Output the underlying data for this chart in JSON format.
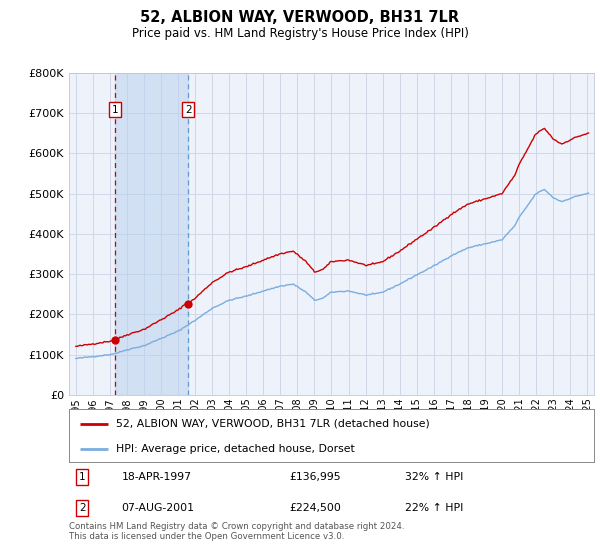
{
  "title": "52, ALBION WAY, VERWOOD, BH31 7LR",
  "subtitle": "Price paid vs. HM Land Registry's House Price Index (HPI)",
  "legend_line1": "52, ALBION WAY, VERWOOD, BH31 7LR (detached house)",
  "legend_line2": "HPI: Average price, detached house, Dorset",
  "sale1_date": "18-APR-1997",
  "sale1_price": "£136,995",
  "sale1_hpi": "32% ↑ HPI",
  "sale1_year": 1997.29,
  "sale1_value": 136995,
  "sale2_date": "07-AUG-2001",
  "sale2_price": "£224,500",
  "sale2_hpi": "22% ↑ HPI",
  "sale2_year": 2001.6,
  "sale2_value": 224500,
  "red_color": "#cc0000",
  "blue_color": "#7aade0",
  "bg_color": "#ffffff",
  "plot_bg_color": "#eef2fa",
  "grid_color": "#d0d8e8",
  "footnote": "Contains HM Land Registry data © Crown copyright and database right 2024.\nThis data is licensed under the Open Government Licence v3.0.",
  "ylim": [
    0,
    800000
  ],
  "yticks": [
    0,
    100000,
    200000,
    300000,
    400000,
    500000,
    600000,
    700000,
    800000
  ],
  "hpi_base_year": 1995.0,
  "hpi_base_value": 91000,
  "sale1_hpi_ratio": 1.32,
  "sale2_hpi_ratio": 1.22,
  "xtick_years": [
    1995,
    1996,
    1997,
    1998,
    1999,
    2000,
    2001,
    2002,
    2003,
    2004,
    2005,
    2006,
    2007,
    2008,
    2009,
    2010,
    2011,
    2012,
    2013,
    2014,
    2015,
    2016,
    2017,
    2018,
    2019,
    2020,
    2021,
    2022,
    2023,
    2024,
    2025
  ],
  "xlim": [
    1994.6,
    2025.4
  ]
}
